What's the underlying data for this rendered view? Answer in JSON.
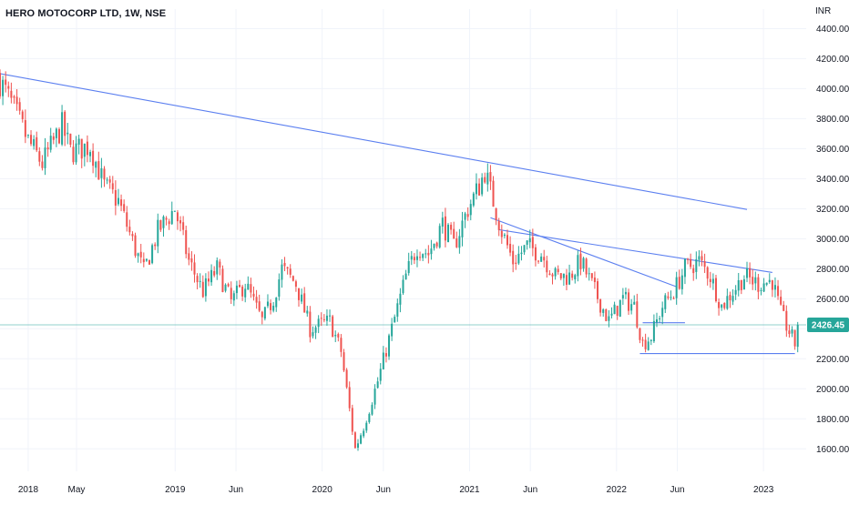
{
  "chart_data": {
    "type": "candlestick",
    "title": "HERO MOTOCORP LTD, 1W, NSE",
    "currency": "INR",
    "y_ticks": [
      1600,
      1800,
      2000,
      2200,
      2400,
      2600,
      2800,
      3000,
      3200,
      3400,
      3600,
      3800,
      4000,
      4200,
      4400
    ],
    "y_tick_labels": [
      "1600.00",
      "1800.00",
      "2000.00",
      "2200.00",
      "2400.00",
      "2600.00",
      "2800.00",
      "3000.00",
      "3200.00",
      "3400.00",
      "3600.00",
      "3800.00",
      "4000.00",
      "4200.00",
      "4400.00"
    ],
    "ylim": [
      1450,
      4530
    ],
    "xlim": [
      "2017-10-23",
      "2023-04-17"
    ],
    "x_ticks": [
      {
        "label": "2018",
        "date": "2018-01-01"
      },
      {
        "label": "May",
        "date": "2018-05-01"
      },
      {
        "label": "2019",
        "date": "2019-01-01"
      },
      {
        "label": "Jun",
        "date": "2019-06-01"
      },
      {
        "label": "2020",
        "date": "2020-01-01"
      },
      {
        "label": "Jun",
        "date": "2020-06-01"
      },
      {
        "label": "2021",
        "date": "2021-01-01"
      },
      {
        "label": "Jun",
        "date": "2021-06-01"
      },
      {
        "label": "2022",
        "date": "2022-01-01"
      },
      {
        "label": "Jun",
        "date": "2022-06-01"
      },
      {
        "label": "2023",
        "date": "2023-01-01"
      }
    ],
    "last_price": 2426.45,
    "last_price_label": "2426.45",
    "up_color": "#26a69a",
    "down_color": "#ef5350",
    "trendline_color": "#5b7ff0",
    "last_price_line_color": "#26a69a",
    "grid": true,
    "trendlines": [
      {
        "start": [
          "2017-10-23",
          4100
        ],
        "end": [
          "2022-11-21",
          3195
        ]
      },
      {
        "start": [
          "2021-02-22",
          3140
        ],
        "end": [
          "2022-05-30",
          2680
        ]
      },
      {
        "start": [
          "2021-03-15",
          3060
        ],
        "end": [
          "2023-01-23",
          2775
        ]
      },
      {
        "start": [
          "2022-03-07",
          2440
        ],
        "end": [
          "2022-06-20",
          2440
        ]
      },
      {
        "start": [
          "2022-02-28",
          2235
        ],
        "end": [
          "2023-03-20",
          2235
        ]
      }
    ],
    "close_waypoints": [
      [
        "2017-10-23",
        4050
      ],
      [
        "2017-11-20",
        3900
      ],
      [
        "2018-01-01",
        3650
      ],
      [
        "2018-02-05",
        3500
      ],
      [
        "2018-03-26",
        3750
      ],
      [
        "2018-04-16",
        3580
      ],
      [
        "2018-06-04",
        3620
      ],
      [
        "2018-07-09",
        3350
      ],
      [
        "2018-08-13",
        3250
      ],
      [
        "2018-09-17",
        2980
      ],
      [
        "2018-10-15",
        2780
      ],
      [
        "2018-11-19",
        3050
      ],
      [
        "2018-12-31",
        3200
      ],
      [
        "2019-02-04",
        2850
      ],
      [
        "2019-03-11",
        2650
      ],
      [
        "2019-04-15",
        2800
      ],
      [
        "2019-05-20",
        2580
      ],
      [
        "2019-06-24",
        2700
      ],
      [
        "2019-08-05",
        2450
      ],
      [
        "2019-09-02",
        2600
      ],
      [
        "2019-09-23",
        2800
      ],
      [
        "2019-10-28",
        2700
      ],
      [
        "2019-12-02",
        2400
      ],
      [
        "2020-01-20",
        2450
      ],
      [
        "2020-02-17",
        2250
      ],
      [
        "2020-03-23",
        1600
      ],
      [
        "2020-04-13",
        1750
      ],
      [
        "2020-05-18",
        2050
      ],
      [
        "2020-06-22",
        2400
      ],
      [
        "2020-07-27",
        2750
      ],
      [
        "2020-08-24",
        2950
      ],
      [
        "2020-09-21",
        2900
      ],
      [
        "2020-10-26",
        3100
      ],
      [
        "2020-11-23",
        2950
      ],
      [
        "2020-12-28",
        3200
      ],
      [
        "2021-01-25",
        3350
      ],
      [
        "2021-02-08",
        3450
      ],
      [
        "2021-03-01",
        3250
      ],
      [
        "2021-03-22",
        3050
      ],
      [
        "2021-04-19",
        2850
      ],
      [
        "2021-05-24",
        2950
      ],
      [
        "2021-06-28",
        2900
      ],
      [
        "2021-08-02",
        2750
      ],
      [
        "2021-09-06",
        2750
      ],
      [
        "2021-10-04",
        2850
      ],
      [
        "2021-11-08",
        2650
      ],
      [
        "2021-12-13",
        2450
      ],
      [
        "2022-01-17",
        2600
      ],
      [
        "2022-02-14",
        2550
      ],
      [
        "2022-03-07",
        2300
      ],
      [
        "2022-03-28",
        2350
      ],
      [
        "2022-04-25",
        2550
      ],
      [
        "2022-05-23",
        2650
      ],
      [
        "2022-06-20",
        2800
      ],
      [
        "2022-07-25",
        2850
      ],
      [
        "2022-08-22",
        2750
      ],
      [
        "2022-09-19",
        2550
      ],
      [
        "2022-10-17",
        2650
      ],
      [
        "2022-11-14",
        2750
      ],
      [
        "2022-12-19",
        2700
      ],
      [
        "2023-01-23",
        2720
      ],
      [
        "2023-02-13",
        2500
      ],
      [
        "2023-03-06",
        2380
      ],
      [
        "2023-03-20",
        2300
      ],
      [
        "2023-03-27",
        2426.45
      ]
    ]
  }
}
